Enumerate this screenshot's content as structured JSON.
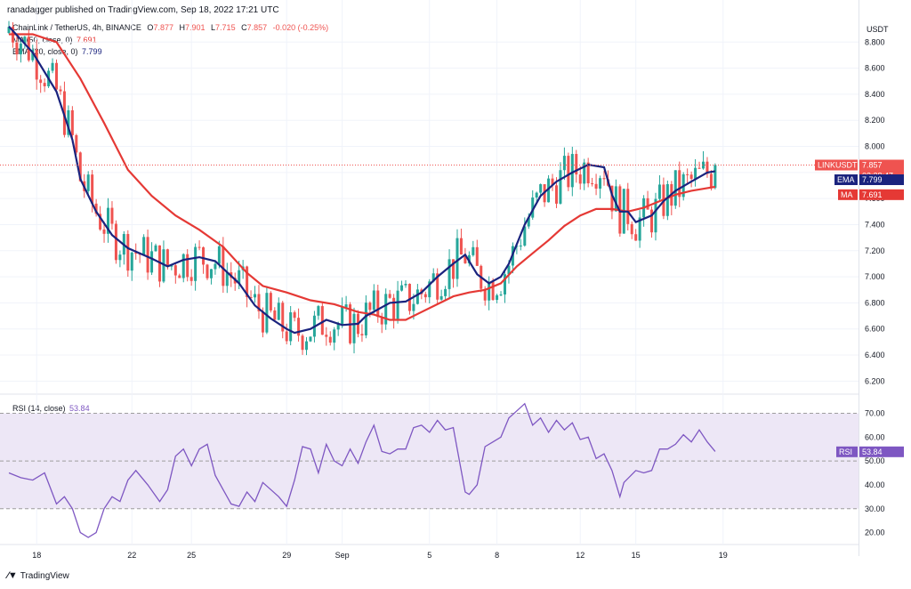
{
  "header": {
    "publisher": "ranadagger published on TradingView.com, Sep 18, 2022 17:21 UTC"
  },
  "price_legend": {
    "title": "ChainLink / TetherUS, 4h, BINANCE",
    "o_label": "O",
    "o": "7.877",
    "h_label": "H",
    "h": "7.901",
    "l_label": "L",
    "l": "7.715",
    "c_label": "C",
    "c": "7.857",
    "change": "-0.020 (-0.25%)",
    "ma_label": "MA (50, close, 0)",
    "ma_value": "7.691",
    "ema_label": "EMA (20, close, 0)",
    "ema_value": "7.799"
  },
  "rsi_legend": {
    "label": "RSI (14, close)",
    "value": "53.84"
  },
  "axis_currency": "USDT",
  "badges": {
    "symbol": "LINKUSDT",
    "last": "7.857",
    "countdown": "02:38:47",
    "ema_tag": "EMA",
    "ema_val": "7.799",
    "ma_tag": "MA",
    "ma_val": "7.691",
    "rsi_tag": "RSI",
    "rsi_val": "53.84"
  },
  "footer": {
    "brand": "TradingView"
  },
  "colors": {
    "up": "#26a69a",
    "down": "#ef5350",
    "ema": "#1a237e",
    "ma": "#e53935",
    "rsi": "#7e57c2",
    "rsi_band": "#ede7f6",
    "grid": "#f0f3fa"
  },
  "chart_data": [
    {
      "type": "candlestick",
      "title": "ChainLink / TetherUS, 4h, BINANCE",
      "y_ticks": [
        "8.800",
        "8.600",
        "8.400",
        "8.200",
        "8.000",
        "7.800",
        "7.600",
        "7.400",
        "7.200",
        "7.000",
        "6.800",
        "6.600",
        "6.400",
        "6.200"
      ],
      "y_range": [
        6.1,
        9.0
      ],
      "x_ticks": [
        "18",
        "22",
        "25",
        "29",
        "Sep",
        "5",
        "8",
        "12",
        "15",
        "19"
      ],
      "x_tick_bar_index": [
        7,
        31,
        46,
        70,
        84,
        106,
        123,
        144,
        158,
        180
      ],
      "series": [
        {
          "name": "EMA (20, close, 0)",
          "last": 7.799
        },
        {
          "name": "MA (50, close, 0)",
          "last": 7.691
        }
      ],
      "ema_path": [
        [
          0,
          8.92
        ],
        [
          6,
          8.72
        ],
        [
          12,
          8.42
        ],
        [
          16,
          8.05
        ],
        [
          18,
          7.75
        ],
        [
          22,
          7.5
        ],
        [
          26,
          7.32
        ],
        [
          30,
          7.22
        ],
        [
          36,
          7.14
        ],
        [
          40,
          7.08
        ],
        [
          44,
          7.13
        ],
        [
          48,
          7.15
        ],
        [
          52,
          7.12
        ],
        [
          58,
          6.95
        ],
        [
          62,
          6.78
        ],
        [
          66,
          6.68
        ],
        [
          70,
          6.6
        ],
        [
          72,
          6.57
        ],
        [
          76,
          6.6
        ],
        [
          80,
          6.67
        ],
        [
          84,
          6.63
        ],
        [
          88,
          6.64
        ],
        [
          90,
          6.7
        ],
        [
          96,
          6.8
        ],
        [
          100,
          6.81
        ],
        [
          104,
          6.88
        ],
        [
          108,
          7.0
        ],
        [
          112,
          7.1
        ],
        [
          115,
          7.17
        ],
        [
          118,
          7.02
        ],
        [
          121,
          6.95
        ],
        [
          124,
          7.0
        ],
        [
          126,
          7.1
        ],
        [
          130,
          7.4
        ],
        [
          134,
          7.62
        ],
        [
          138,
          7.73
        ],
        [
          142,
          7.8
        ],
        [
          146,
          7.86
        ],
        [
          150,
          7.84
        ],
        [
          152,
          7.63
        ],
        [
          154,
          7.5
        ],
        [
          156,
          7.5
        ],
        [
          158,
          7.42
        ],
        [
          162,
          7.47
        ],
        [
          165,
          7.58
        ],
        [
          168,
          7.66
        ],
        [
          172,
          7.73
        ],
        [
          176,
          7.8
        ],
        [
          178,
          7.81
        ]
      ],
      "ma_path": [
        [
          0,
          8.86
        ],
        [
          6,
          8.86
        ],
        [
          12,
          8.8
        ],
        [
          18,
          8.52
        ],
        [
          24,
          8.18
        ],
        [
          30,
          7.82
        ],
        [
          36,
          7.62
        ],
        [
          42,
          7.47
        ],
        [
          48,
          7.36
        ],
        [
          54,
          7.23
        ],
        [
          60,
          7.03
        ],
        [
          64,
          6.93
        ],
        [
          70,
          6.88
        ],
        [
          76,
          6.82
        ],
        [
          82,
          6.79
        ],
        [
          88,
          6.73
        ],
        [
          92,
          6.71
        ],
        [
          96,
          6.67
        ],
        [
          100,
          6.67
        ],
        [
          104,
          6.73
        ],
        [
          108,
          6.79
        ],
        [
          112,
          6.85
        ],
        [
          116,
          6.88
        ],
        [
          120,
          6.9
        ],
        [
          124,
          6.95
        ],
        [
          128,
          7.08
        ],
        [
          132,
          7.18
        ],
        [
          136,
          7.28
        ],
        [
          140,
          7.39
        ],
        [
          144,
          7.47
        ],
        [
          148,
          7.52
        ],
        [
          152,
          7.52
        ],
        [
          156,
          7.5
        ],
        [
          160,
          7.53
        ],
        [
          164,
          7.58
        ],
        [
          168,
          7.63
        ],
        [
          172,
          7.66
        ],
        [
          176,
          7.68
        ],
        [
          178,
          7.69
        ]
      ],
      "last_price": 7.857
    },
    {
      "type": "line",
      "title": "RSI (14, close)",
      "y_ticks": [
        "70.00",
        "60.00",
        "50.00",
        "40.00",
        "30.00",
        "20.00"
      ],
      "y_range": [
        15,
        78
      ],
      "band": [
        30,
        70
      ],
      "series": [
        {
          "name": "RSI (14, close)",
          "last": 53.84
        }
      ],
      "values": [
        [
          0,
          45
        ],
        [
          3,
          43
        ],
        [
          6,
          42
        ],
        [
          9,
          45
        ],
        [
          12,
          32
        ],
        [
          14,
          35
        ],
        [
          16,
          30
        ],
        [
          18,
          20
        ],
        [
          20,
          18
        ],
        [
          22,
          20
        ],
        [
          24,
          30
        ],
        [
          26,
          35
        ],
        [
          28,
          33
        ],
        [
          30,
          42
        ],
        [
          32,
          46
        ],
        [
          35,
          40
        ],
        [
          38,
          33
        ],
        [
          40,
          38
        ],
        [
          42,
          52
        ],
        [
          44,
          55
        ],
        [
          46,
          48
        ],
        [
          48,
          55
        ],
        [
          50,
          57
        ],
        [
          52,
          44
        ],
        [
          54,
          38
        ],
        [
          56,
          32
        ],
        [
          58,
          31
        ],
        [
          60,
          37
        ],
        [
          62,
          33
        ],
        [
          64,
          41
        ],
        [
          66,
          38
        ],
        [
          68,
          35
        ],
        [
          70,
          31
        ],
        [
          72,
          42
        ],
        [
          74,
          56
        ],
        [
          76,
          55
        ],
        [
          78,
          45
        ],
        [
          80,
          57
        ],
        [
          82,
          50
        ],
        [
          84,
          48
        ],
        [
          86,
          55
        ],
        [
          88,
          49
        ],
        [
          90,
          58
        ],
        [
          92,
          65
        ],
        [
          94,
          54
        ],
        [
          96,
          53
        ],
        [
          98,
          55
        ],
        [
          100,
          55
        ],
        [
          102,
          64
        ],
        [
          104,
          65
        ],
        [
          106,
          62
        ],
        [
          108,
          67
        ],
        [
          110,
          63
        ],
        [
          112,
          64
        ],
        [
          114,
          46
        ],
        [
          115,
          37
        ],
        [
          116,
          36
        ],
        [
          118,
          40
        ],
        [
          120,
          56
        ],
        [
          122,
          58
        ],
        [
          124,
          60
        ],
        [
          126,
          68
        ],
        [
          128,
          71
        ],
        [
          130,
          74
        ],
        [
          132,
          65
        ],
        [
          134,
          68
        ],
        [
          136,
          62
        ],
        [
          138,
          67
        ],
        [
          140,
          63
        ],
        [
          142,
          66
        ],
        [
          144,
          59
        ],
        [
          146,
          60
        ],
        [
          148,
          51
        ],
        [
          150,
          53
        ],
        [
          152,
          46
        ],
        [
          154,
          35
        ],
        [
          155,
          41
        ],
        [
          158,
          46
        ],
        [
          160,
          45
        ],
        [
          162,
          46
        ],
        [
          164,
          55
        ],
        [
          166,
          55
        ],
        [
          168,
          57
        ],
        [
          170,
          61
        ],
        [
          172,
          58
        ],
        [
          174,
          63
        ],
        [
          176,
          58
        ],
        [
          178,
          54
        ]
      ]
    }
  ]
}
